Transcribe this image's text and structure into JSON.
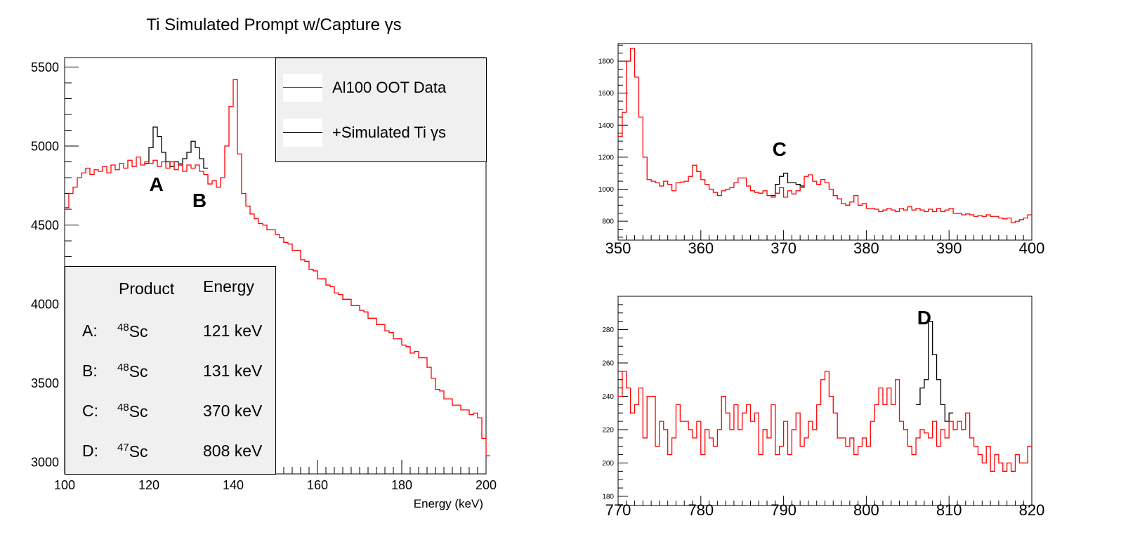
{
  "colors": {
    "data": "#ff0000",
    "sim": "#000000",
    "box_fill": "#f0f0f0"
  },
  "main_title": "Ti Simulated Prompt w/Capture   γs",
  "legend": {
    "entries": [
      {
        "label": "Al100 OOT Data",
        "color": "#ff0000"
      },
      {
        "label": "+Simulated Ti γs",
        "color": "#000000"
      }
    ]
  },
  "table": {
    "headers": [
      "Product",
      "Energy"
    ],
    "rows": [
      {
        "key": "A:",
        "mass": "48",
        "element": "Sc",
        "energy": "121 keV"
      },
      {
        "key": "B:",
        "mass": "48",
        "element": "Sc",
        "energy": "131 keV"
      },
      {
        "key": "C:",
        "mass": "48",
        "element": "Sc",
        "energy": "370 keV"
      },
      {
        "key": "D:",
        "mass": "47",
        "element": "Sc",
        "energy": "808 keV"
      }
    ]
  },
  "chart_data": [
    {
      "type": "line",
      "id": "main",
      "xlabel": "Energy (keV)",
      "ylabel": "",
      "xlim": [
        100,
        200
      ],
      "ylim": [
        2925,
        5560
      ],
      "xticks": [
        100,
        120,
        140,
        160,
        180,
        200
      ],
      "yticks": [
        3000,
        3500,
        4000,
        4500,
        5000,
        5500
      ],
      "annotations": [
        {
          "text": "A",
          "x": 121.8
        },
        {
          "text": "B",
          "x": 132
        }
      ],
      "bin_width": 1,
      "x0": 100,
      "series": [
        {
          "name": "Al100 OOT Data",
          "color": "#ff0000",
          "values": [
            4610,
            4700,
            4740,
            4800,
            4830,
            4860,
            4820,
            4850,
            4840,
            4870,
            4830,
            4880,
            4850,
            4890,
            4860,
            4910,
            4870,
            4930,
            4880,
            4900,
            4890,
            4910,
            4870,
            4900,
            4860,
            4900,
            4850,
            4890,
            4840,
            4880,
            4860,
            4880,
            4840,
            4820,
            4760,
            4780,
            4740,
            4800,
            5000,
            5250,
            5420,
            4950,
            4700,
            4620,
            4570,
            4540,
            4510,
            4500,
            4470,
            4470,
            4440,
            4420,
            4390,
            4380,
            4340,
            4340,
            4280,
            4270,
            4220,
            4210,
            4160,
            4160,
            4120,
            4110,
            4070,
            4060,
            4030,
            4030,
            3990,
            3990,
            3960,
            3950,
            3910,
            3910,
            3870,
            3870,
            3830,
            3820,
            3780,
            3780,
            3740,
            3730,
            3690,
            3700,
            3660,
            3660,
            3600,
            3530,
            3460,
            3450,
            3400,
            3400,
            3360,
            3360,
            3330,
            3330,
            3300,
            3310,
            3280,
            3150,
            3040
          ]
        },
        {
          "name": "+Simulated Ti γs",
          "color": "#000000",
          "x0": 119,
          "values": [
            4890,
            4990,
            5120,
            5060,
            4960,
            4900,
            4870,
            4900,
            4880,
            4920,
            4960,
            5030,
            4990,
            4920,
            4860
          ]
        }
      ]
    },
    {
      "type": "line",
      "id": "inset-c",
      "xlim": [
        350,
        400
      ],
      "ylim": [
        682,
        1910
      ],
      "xticks": [
        350,
        360,
        370,
        380,
        390,
        400
      ],
      "yticks": [
        800,
        1000,
        1200,
        1400,
        1600,
        1800
      ],
      "annotations": [
        {
          "text": "C",
          "x": 369.5
        }
      ],
      "bin_width": 0.5,
      "x0": 350,
      "series": [
        {
          "color": "#ff0000",
          "values": [
            1330,
            1480,
            1800,
            1880,
            1700,
            1450,
            1200,
            1060,
            1050,
            1040,
            1020,
            1050,
            1030,
            990,
            1040,
            1045,
            1050,
            1080,
            1150,
            1110,
            1060,
            1030,
            1000,
            980,
            960,
            990,
            1000,
            1010,
            1040,
            1070,
            1070,
            1020,
            990,
            980,
            975,
            990,
            960,
            950,
            975,
            1010,
            950,
            990,
            970,
            990,
            1010,
            1080,
            1090,
            1050,
            1030,
            1060,
            1040,
            1000,
            960,
            940,
            910,
            900,
            920,
            960,
            900,
            910,
            880,
            880,
            875,
            860,
            870,
            880,
            870,
            860,
            880,
            870,
            890,
            870,
            880,
            870,
            860,
            875,
            860,
            880,
            860,
            870,
            880,
            850,
            850,
            840,
            845,
            840,
            830,
            835,
            830,
            840,
            830,
            830,
            820,
            815,
            820,
            790,
            800,
            810,
            820,
            840
          ]
        },
        {
          "color": "#000000",
          "x0": 368.5,
          "values": [
            960,
            1030,
            1080,
            1100,
            1040,
            1040,
            1030,
            1020
          ]
        }
      ]
    },
    {
      "type": "line",
      "id": "inset-d",
      "xlim": [
        770,
        820
      ],
      "ylim": [
        174.5,
        300
      ],
      "xticks": [
        770,
        780,
        790,
        800,
        810,
        820
      ],
      "yticks": [
        180,
        200,
        220,
        240,
        260,
        280
      ],
      "annotations": [
        {
          "text": "D",
          "x": 807
        }
      ],
      "bin_width": 0.5,
      "x0": 770,
      "series": [
        {
          "color": "#ff0000",
          "values": [
            240,
            255,
            245,
            230,
            235,
            245,
            215,
            240,
            240,
            210,
            225,
            220,
            205,
            215,
            235,
            225,
            225,
            220,
            215,
            225,
            205,
            220,
            215,
            210,
            220,
            240,
            230,
            220,
            235,
            220,
            230,
            235,
            225,
            230,
            205,
            220,
            215,
            235,
            205,
            210,
            225,
            205,
            220,
            230,
            210,
            215,
            225,
            220,
            235,
            250,
            255,
            240,
            230,
            215,
            215,
            210,
            215,
            205,
            210,
            215,
            210,
            225,
            235,
            245,
            235,
            245,
            235,
            250,
            225,
            220,
            210,
            205,
            215,
            220,
            218,
            215,
            225,
            210,
            220,
            215,
            225,
            220,
            225,
            220,
            230,
            215,
            210,
            205,
            200,
            210,
            195,
            205,
            200,
            195,
            200,
            195,
            205,
            200,
            200,
            210
          ]
        },
        {
          "color": "#000000",
          "x0": 806,
          "values": [
            235,
            245,
            250,
            285,
            265,
            250,
            235,
            225,
            230
          ]
        }
      ]
    }
  ]
}
